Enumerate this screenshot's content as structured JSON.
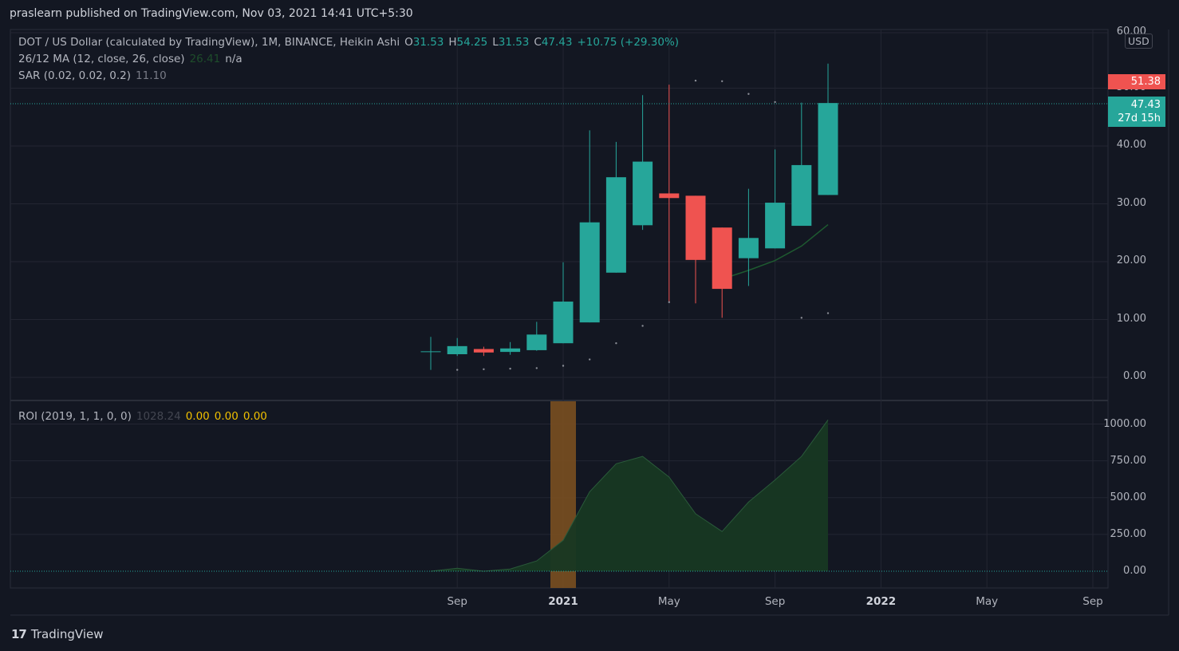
{
  "header": {
    "publish_text": "praslearn published on TradingView.com, Nov 03, 2021 14:41 UTC+5:30"
  },
  "legend": {
    "symbol": "DOT / US Dollar (calculated by TradingView), 1M, BINANCE, Heikin Ashi",
    "open_label": "O",
    "open": "31.53",
    "high_label": "H",
    "high": "54.25",
    "low_label": "L",
    "low": "31.53",
    "close_label": "C",
    "close": "47.43",
    "change": "+10.75 (+29.30%)",
    "ma_name": "26/12 MA (12, close, 26, close)",
    "ma_value": "26.41",
    "ma_value2": "n/a",
    "sar_name": "SAR (0.02, 0.02, 0.2)",
    "sar_value": "11.10",
    "roi_name": "ROI (2019, 1, 1, 0, 0)",
    "roi_value": "1028.24",
    "roi_v1": "0.00",
    "roi_v2": "0.00",
    "roi_v3": "0.00"
  },
  "price_axis": {
    "currency": "USD",
    "ticks": [
      "60.00",
      "50.00",
      "40.00",
      "30.00",
      "20.00",
      "10.00",
      "0.00"
    ],
    "sar_badge": "51.38",
    "last_price": "47.43",
    "countdown": "27d 15h"
  },
  "roi_axis": {
    "ticks": [
      "1000.00",
      "750.00",
      "500.00",
      "250.00",
      "0.00"
    ]
  },
  "time_axis": {
    "labels": [
      "Sep",
      "2021",
      "May",
      "Sep",
      "2022",
      "May",
      "Sep"
    ]
  },
  "footer": {
    "brand": "TradingView",
    "logo": "17"
  },
  "colors": {
    "up": "#26a69a",
    "down": "#ef5350",
    "bg": "#131722",
    "grid": "#232632",
    "roi_fill": "#173823",
    "highlight": "#7a4f20"
  },
  "chart_data": {
    "type": "candlestick",
    "title": "DOT / US Dollar (calculated by TradingView), 1M, BINANCE, Heikin Ashi",
    "ylim": [
      0,
      60
    ],
    "candles": [
      {
        "x": "2020-08",
        "o": 4.5,
        "h": 7.0,
        "l": 1.3,
        "c": 4.5
      },
      {
        "x": "2020-09",
        "o": 4.0,
        "h": 6.8,
        "l": 3.7,
        "c": 5.4
      },
      {
        "x": "2020-10",
        "o": 4.9,
        "h": 5.3,
        "l": 3.7,
        "c": 4.3
      },
      {
        "x": "2020-11",
        "o": 4.4,
        "h": 6.1,
        "l": 3.9,
        "c": 5.0
      },
      {
        "x": "2020-12",
        "o": 4.7,
        "h": 9.6,
        "l": 4.6,
        "c": 7.4
      },
      {
        "x": "2021-01",
        "o": 5.9,
        "h": 19.9,
        "l": 5.9,
        "c": 13.1
      },
      {
        "x": "2021-02",
        "o": 9.5,
        "h": 42.7,
        "l": 9.5,
        "c": 26.8
      },
      {
        "x": "2021-03",
        "o": 18.1,
        "h": 40.7,
        "l": 18.1,
        "c": 34.6
      },
      {
        "x": "2021-04",
        "o": 26.3,
        "h": 48.8,
        "l": 25.5,
        "c": 37.3
      },
      {
        "x": "2021-05",
        "o": 31.8,
        "h": 50.6,
        "l": 13.0,
        "c": 31.0
      },
      {
        "x": "2021-06",
        "o": 31.4,
        "h": 31.4,
        "l": 12.8,
        "c": 20.3
      },
      {
        "x": "2021-07",
        "o": 25.9,
        "h": 25.9,
        "l": 10.3,
        "c": 15.3
      },
      {
        "x": "2021-08",
        "o": 20.6,
        "h": 32.6,
        "l": 15.8,
        "c": 24.1
      },
      {
        "x": "2021-09",
        "o": 22.3,
        "h": 39.4,
        "l": 22.3,
        "c": 30.2
      },
      {
        "x": "2021-10",
        "o": 26.2,
        "h": 47.5,
        "l": 26.2,
        "c": 36.7
      },
      {
        "x": "2021-11",
        "o": 31.53,
        "h": 54.25,
        "l": 31.53,
        "c": 47.43
      }
    ],
    "ma_series": [
      {
        "x": "2021-07",
        "y": 17.0
      },
      {
        "x": "2021-08",
        "y": 18.5
      },
      {
        "x": "2021-09",
        "y": 20.2
      },
      {
        "x": "2021-10",
        "y": 22.7
      },
      {
        "x": "2021-11",
        "y": 26.41
      }
    ],
    "sar_points": [
      {
        "x": "2020-09",
        "y": 1.3
      },
      {
        "x": "2020-10",
        "y": 1.4
      },
      {
        "x": "2020-11",
        "y": 1.5
      },
      {
        "x": "2020-12",
        "y": 1.6
      },
      {
        "x": "2021-01",
        "y": 2.0
      },
      {
        "x": "2021-02",
        "y": 3.1
      },
      {
        "x": "2021-03",
        "y": 5.9
      },
      {
        "x": "2021-04",
        "y": 8.9
      },
      {
        "x": "2021-05",
        "y": 13.0
      },
      {
        "x": "2021-06",
        "y": 51.3
      },
      {
        "x": "2021-07",
        "y": 51.2
      },
      {
        "x": "2021-08",
        "y": 49.0
      },
      {
        "x": "2021-09",
        "y": 47.6
      },
      {
        "x": "2021-10",
        "y": 10.3
      },
      {
        "x": "2021-11",
        "y": 11.1
      }
    ],
    "roi": {
      "ylim": [
        0,
        1000
      ],
      "x": [
        "2020-08",
        "2020-09",
        "2020-10",
        "2020-11",
        "2020-12",
        "2021-01",
        "2021-02",
        "2021-03",
        "2021-04",
        "2021-05",
        "2021-06",
        "2021-07",
        "2021-08",
        "2021-09",
        "2021-10",
        "2021-11"
      ],
      "values": [
        0,
        20,
        0,
        15,
        70,
        210,
        540,
        730,
        780,
        640,
        390,
        270,
        470,
        620,
        780,
        1028.24
      ],
      "highlight_period": "2021-01"
    }
  }
}
